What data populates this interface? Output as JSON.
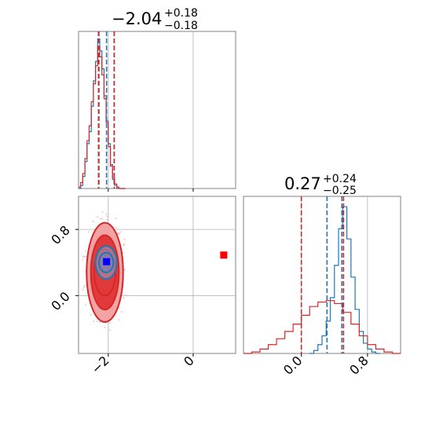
{
  "colors": {
    "blue": "#1f77b4",
    "red": "#d62728",
    "marker_blue": "#0000ff",
    "marker_red": "#ff0000",
    "contour_fill_dark": "#e03a3a",
    "contour_fill_light": "#f2a3a3",
    "scatter": "#f4b6c2",
    "grid": "#b0b0b0"
  },
  "chart_data": [
    {
      "type": "histogram",
      "panel": "top-left",
      "title": {
        "value": "−2.04",
        "upper": "+0.18",
        "lower": "−0.18"
      },
      "xlim": [
        -2.7,
        1.0
      ],
      "x_ticks": [
        -2,
        0
      ],
      "x_tick_labels": [
        "−2",
        "0"
      ],
      "grid": true,
      "series": [
        {
          "color": "blue",
          "bins": [
            -2.7,
            -2.65,
            -2.6,
            -2.55,
            -2.5,
            -2.45,
            -2.4,
            -2.35,
            -2.3,
            -2.25,
            -2.2,
            -2.15,
            -2.1,
            -2.05,
            -2.0,
            -1.95,
            -1.9,
            -1.85,
            -1.8,
            -1.75,
            -1.7,
            -1.65,
            -1.6
          ],
          "counts": [
            0.0,
            0.02,
            0.08,
            0.18,
            0.3,
            0.38,
            0.55,
            0.72,
            0.85,
            1.0,
            0.92,
            0.8,
            0.62,
            0.45,
            0.3,
            0.16,
            0.06,
            0.02,
            0.0,
            0.0,
            0.0,
            0.0
          ]
        },
        {
          "color": "red",
          "bins": [
            -2.7,
            -2.65,
            -2.6,
            -2.55,
            -2.5,
            -2.45,
            -2.4,
            -2.35,
            -2.3,
            -2.25,
            -2.2,
            -2.15,
            -2.1,
            -2.05,
            -2.0,
            -1.95,
            -1.9,
            -1.85,
            -1.8,
            -1.75,
            -1.7,
            -1.65,
            -1.6
          ],
          "counts": [
            0.01,
            0.04,
            0.1,
            0.2,
            0.32,
            0.42,
            0.58,
            0.7,
            0.82,
            0.95,
            0.88,
            0.76,
            0.6,
            0.44,
            0.28,
            0.15,
            0.07,
            0.03,
            0.01,
            0.0,
            0.0,
            0.0
          ]
        }
      ],
      "quantiles": [
        {
          "x": -2.22,
          "color": "blue"
        },
        {
          "x": -2.04,
          "color": "blue"
        },
        {
          "x": -1.86,
          "color": "blue"
        },
        {
          "x": -2.23,
          "color": "red"
        },
        {
          "x": -1.86,
          "color": "red"
        }
      ]
    },
    {
      "type": "contour",
      "panel": "bottom-left",
      "xlim": [
        -2.7,
        1.0
      ],
      "ylim": [
        -0.7,
        1.2
      ],
      "x_ticks": [
        -2,
        0
      ],
      "x_tick_labels": [
        "−2",
        "0"
      ],
      "y_ticks": [
        0.0,
        0.8
      ],
      "y_tick_labels": [
        "0.0",
        "0.8"
      ],
      "grid": true,
      "contours": [
        {
          "color": "red",
          "cx": -2.08,
          "cy": 0.28,
          "rx": [
            0.43,
            0.33,
            0.25
          ],
          "ry": [
            0.6,
            0.45,
            0.28
          ]
        },
        {
          "color": "blue",
          "cx": -2.05,
          "cy": 0.4,
          "rx": [
            0.25,
            0.17
          ],
          "ry": [
            0.2,
            0.12
          ]
        }
      ],
      "markers": [
        {
          "x": -2.04,
          "y": 0.41,
          "color": "marker_blue"
        },
        {
          "x": 0.72,
          "y": 0.49,
          "color": "marker_red"
        }
      ]
    },
    {
      "type": "histogram",
      "panel": "bottom-right",
      "title": {
        "value": "0.27",
        "upper": "+0.24",
        "lower": "−0.25"
      },
      "xlim": [
        -0.7,
        1.2
      ],
      "x_ticks": [
        0.0,
        0.8
      ],
      "x_tick_labels": [
        "0.0",
        "0.8"
      ],
      "grid": true,
      "series": [
        {
          "color": "blue",
          "bins": [
            0.1,
            0.15,
            0.2,
            0.25,
            0.3,
            0.35,
            0.4,
            0.45,
            0.5,
            0.55,
            0.6,
            0.65,
            0.7,
            0.75,
            0.8,
            0.85,
            0.9,
            0.95
          ],
          "counts": [
            0.0,
            0.02,
            0.06,
            0.12,
            0.22,
            0.38,
            0.6,
            0.85,
            1.0,
            0.78,
            0.52,
            0.3,
            0.15,
            0.07,
            0.03,
            0.01,
            0.0
          ]
        },
        {
          "color": "red",
          "bins": [
            -0.7,
            -0.6,
            -0.5,
            -0.4,
            -0.3,
            -0.2,
            -0.1,
            0.0,
            0.1,
            0.2,
            0.3,
            0.4,
            0.5,
            0.6,
            0.7,
            0.8,
            0.9,
            1.0,
            1.1,
            1.2
          ],
          "counts": [
            0.0,
            0.01,
            0.03,
            0.06,
            0.1,
            0.15,
            0.2,
            0.26,
            0.32,
            0.35,
            0.36,
            0.34,
            0.28,
            0.2,
            0.12,
            0.06,
            0.03,
            0.01,
            0.0
          ]
        }
      ],
      "quantiles": [
        {
          "x": 0.31,
          "color": "blue"
        },
        {
          "x": 0.49,
          "color": "blue"
        },
        {
          "x": 0.0,
          "color": "red"
        },
        {
          "x": 0.51,
          "color": "red"
        }
      ]
    }
  ]
}
